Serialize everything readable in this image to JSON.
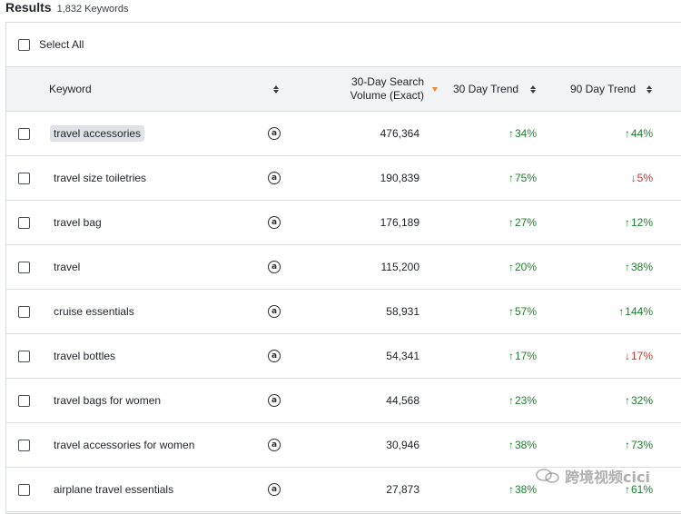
{
  "results": {
    "title": "Results",
    "count": "1,832 Keywords"
  },
  "select_all": {
    "label": "Select All"
  },
  "table": {
    "headers": {
      "keyword": "Keyword",
      "volume_line1": "30-Day Search",
      "volume_line2": "Volume (Exact)",
      "trend30": "30 Day Trend",
      "trend90": "90 Day Trend"
    },
    "rows": [
      {
        "keyword": "travel accessories",
        "volume": "476,364",
        "trend30": "34%",
        "trend30_dir": "up",
        "trend90": "44%",
        "trend90_dir": "up",
        "highlighted": true
      },
      {
        "keyword": "travel size toiletries",
        "volume": "190,839",
        "trend30": "75%",
        "trend30_dir": "up",
        "trend90": "5%",
        "trend90_dir": "down"
      },
      {
        "keyword": "travel bag",
        "volume": "176,189",
        "trend30": "27%",
        "trend30_dir": "up",
        "trend90": "12%",
        "trend90_dir": "up"
      },
      {
        "keyword": "travel",
        "volume": "115,200",
        "trend30": "20%",
        "trend30_dir": "up",
        "trend90": "38%",
        "trend90_dir": "up"
      },
      {
        "keyword": "cruise essentials",
        "volume": "58,931",
        "trend30": "57%",
        "trend30_dir": "up",
        "trend90": "144%",
        "trend90_dir": "up"
      },
      {
        "keyword": "travel bottles",
        "volume": "54,341",
        "trend30": "17%",
        "trend30_dir": "up",
        "trend90": "17%",
        "trend90_dir": "down"
      },
      {
        "keyword": "travel bags for women",
        "volume": "44,568",
        "trend30": "23%",
        "trend30_dir": "up",
        "trend90": "32%",
        "trend90_dir": "up"
      },
      {
        "keyword": "travel accessories for women",
        "volume": "30,946",
        "trend30": "38%",
        "trend30_dir": "up",
        "trend90": "73%",
        "trend90_dir": "up"
      },
      {
        "keyword": "airplane travel essentials",
        "volume": "27,873",
        "trend30": "38%",
        "trend30_dir": "up",
        "trend90": "61%",
        "trend90_dir": "up"
      }
    ]
  },
  "icons": {
    "amazon": "amazon-logo-icon",
    "sort": "sort-icon",
    "checkbox": "checkbox"
  },
  "colors": {
    "up": "#1b7f2a",
    "down": "#d0312d",
    "sort_active": "#f08a24",
    "header_bg": "#f2f3f5"
  },
  "watermark": {
    "text": "跨境视频cici"
  }
}
